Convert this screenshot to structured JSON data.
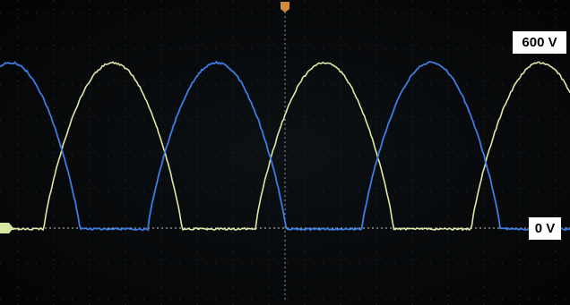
{
  "labels": {
    "top": "600 V",
    "zero": "0 V"
  }
}
